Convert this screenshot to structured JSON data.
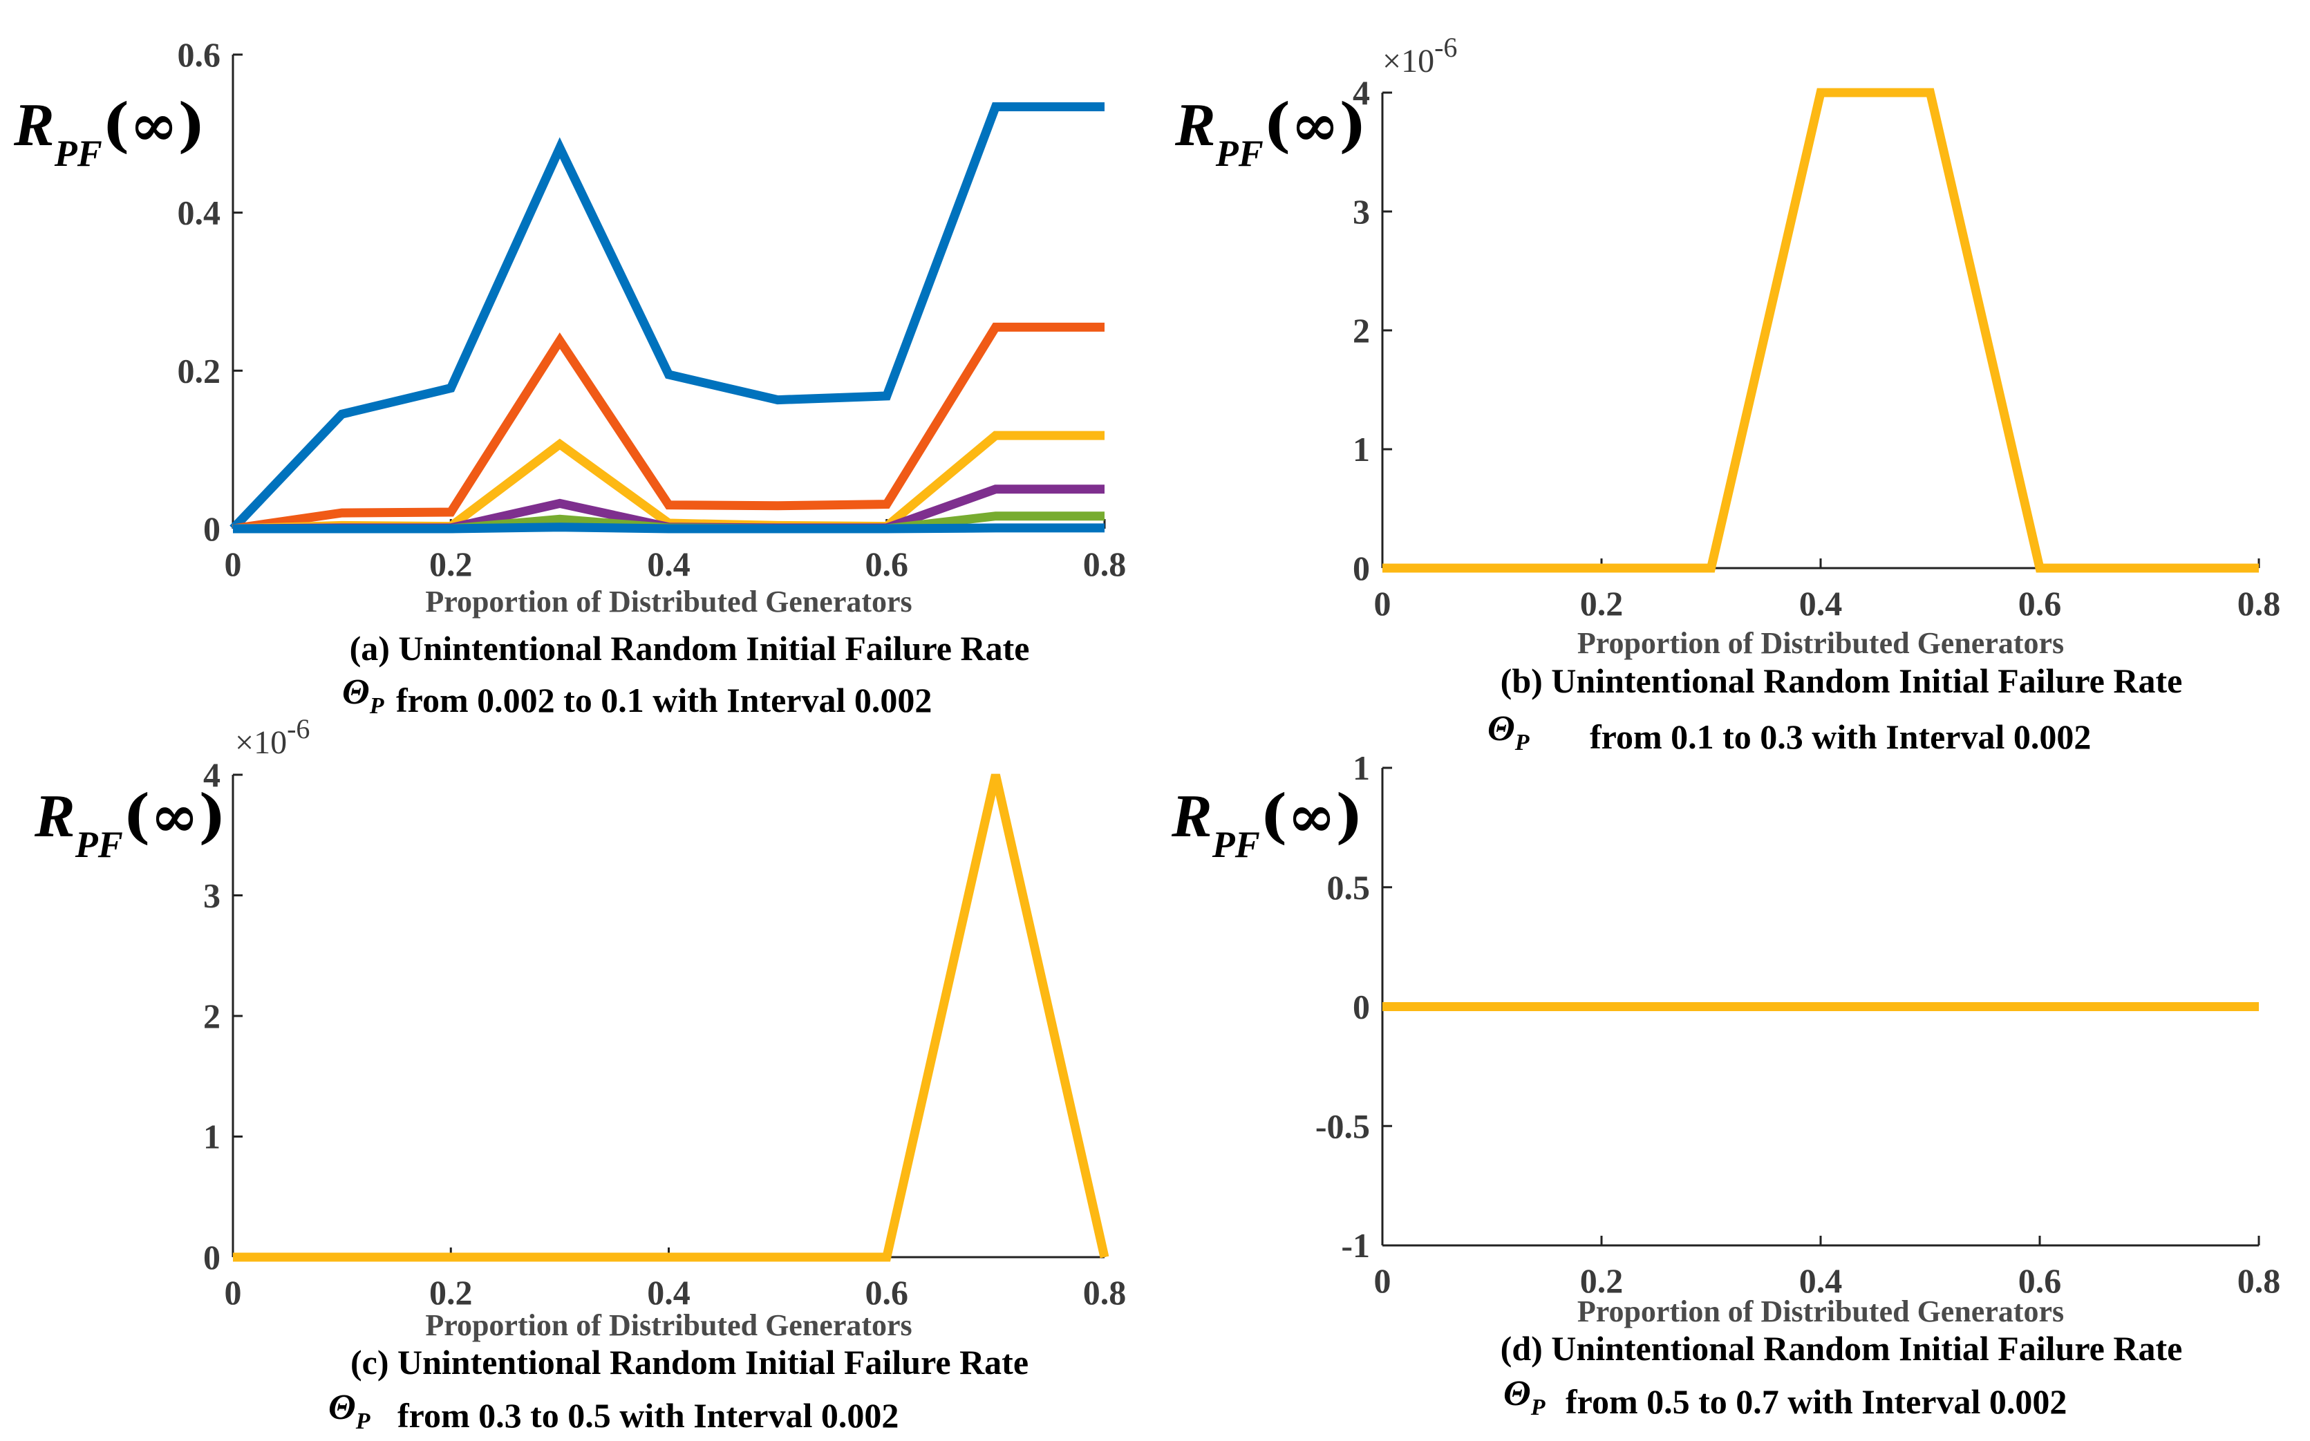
{
  "chart_data": [
    {
      "id": "a",
      "type": "line",
      "ylabel_main": "R",
      "ylabel_sub": "PF",
      "ylabel_tail": "(∞)",
      "xlabel": "Proportion of Distributed Generators",
      "caption_line1": "(a) Unintentional Random Initial Failure Rate",
      "caption_symbol": "Θ",
      "caption_symbol_sub": "P",
      "caption_line2": "from 0.002 to 0.1 with Interval 0.002",
      "exponent": "",
      "xlim": [
        0,
        0.8
      ],
      "ylim": [
        0,
        0.6
      ],
      "xticks": [
        0,
        0.2,
        0.4,
        0.6,
        0.8
      ],
      "xtick_labels": [
        "0",
        "0.2",
        "0.4",
        "0.6",
        "0.8"
      ],
      "yticks": [
        0,
        0.2,
        0.4,
        0.6
      ],
      "ytick_labels": [
        "0",
        "0.2",
        "0.4",
        "0.6"
      ],
      "x": [
        0,
        0.1,
        0.2,
        0.3,
        0.4,
        0.5,
        0.6,
        0.7,
        0.8
      ],
      "series": [
        {
          "name": "blue",
          "color": "#0072BD",
          "values": [
            0,
            0.145,
            0.178,
            0.482,
            0.195,
            0.163,
            0.168,
            0.534,
            0.534
          ]
        },
        {
          "name": "orange",
          "color": "#F05A16",
          "values": [
            0,
            0.02,
            0.021,
            0.238,
            0.03,
            0.029,
            0.031,
            0.255,
            0.255
          ]
        },
        {
          "name": "yellow",
          "color": "#FDB813",
          "values": [
            0,
            0.004,
            0.003,
            0.107,
            0.007,
            0.004,
            0.003,
            0.118,
            0.118
          ]
        },
        {
          "name": "purple",
          "color": "#7E2F8E",
          "values": [
            0,
            0.001,
            0.001,
            0.032,
            0.002,
            0.001,
            0.001,
            0.05,
            0.05
          ]
        },
        {
          "name": "green",
          "color": "#77AC30",
          "values": [
            0,
            0,
            0,
            0.012,
            0.001,
            0,
            0,
            0.016,
            0.016
          ]
        },
        {
          "name": "cyan",
          "color": "#0072BD",
          "values": [
            0,
            0,
            0,
            0.002,
            0,
            0,
            0,
            0.001,
            0.001
          ]
        }
      ]
    },
    {
      "id": "b",
      "type": "line",
      "ylabel_main": "R",
      "ylabel_sub": "PF",
      "ylabel_tail": "(∞)",
      "xlabel": "Proportion of Distributed Generators",
      "caption_line1": "(b) Unintentional Random Initial Failure Rate",
      "caption_symbol": "Θ",
      "caption_symbol_sub": "P",
      "caption_line2": "from 0.1 to 0.3 with Interval 0.002",
      "exponent": "×10",
      "exponent_power": "-6",
      "xlim": [
        0,
        0.8
      ],
      "ylim": [
        0,
        4
      ],
      "xticks": [
        0,
        0.2,
        0.4,
        0.6,
        0.8
      ],
      "xtick_labels": [
        "0",
        "0.2",
        "0.4",
        "0.6",
        "0.8"
      ],
      "yticks": [
        0,
        1,
        2,
        3,
        4
      ],
      "ytick_labels": [
        "0",
        "1",
        "2",
        "3",
        "4"
      ],
      "x": [
        0,
        0.1,
        0.2,
        0.3,
        0.4,
        0.5,
        0.6,
        0.7,
        0.8
      ],
      "series": [
        {
          "name": "yellow",
          "color": "#FDB813",
          "values": [
            0,
            0,
            0,
            0,
            4,
            4,
            0,
            0,
            0
          ]
        }
      ]
    },
    {
      "id": "c",
      "type": "line",
      "ylabel_main": "R",
      "ylabel_sub": "PF",
      "ylabel_tail": "(∞)",
      "xlabel": "Proportion of Distributed Generators",
      "caption_line1": "(c) Unintentional Random Initial Failure Rate",
      "caption_symbol": "Θ",
      "caption_symbol_sub": "P",
      "caption_line2": "from 0.3 to 0.5 with Interval 0.002",
      "exponent": "×10",
      "exponent_power": "-6",
      "xlim": [
        0,
        0.8
      ],
      "ylim": [
        0,
        4
      ],
      "xticks": [
        0,
        0.2,
        0.4,
        0.6,
        0.8
      ],
      "xtick_labels": [
        "0",
        "0.2",
        "0.4",
        "0.6",
        "0.8"
      ],
      "yticks": [
        0,
        1,
        2,
        3,
        4
      ],
      "ytick_labels": [
        "0",
        "1",
        "2",
        "3",
        "4"
      ],
      "x": [
        0,
        0.1,
        0.2,
        0.3,
        0.4,
        0.5,
        0.6,
        0.7,
        0.8
      ],
      "series": [
        {
          "name": "yellow",
          "color": "#FDB813",
          "values": [
            0,
            0,
            0,
            0,
            0,
            0,
            0,
            4,
            0
          ]
        }
      ]
    },
    {
      "id": "d",
      "type": "line",
      "ylabel_main": "R",
      "ylabel_sub": "PF",
      "ylabel_tail": "(∞)",
      "xlabel": "Proportion of Distributed Generators",
      "caption_line1": "(d) Unintentional Random Initial Failure Rate",
      "caption_symbol": "Θ",
      "caption_symbol_sub": "P",
      "caption_line2": "from 0.5 to 0.7 with Interval 0.002",
      "exponent": "",
      "xlim": [
        0,
        0.8
      ],
      "ylim": [
        -1,
        1
      ],
      "xticks": [
        0,
        0.2,
        0.4,
        0.6,
        0.8
      ],
      "xtick_labels": [
        "0",
        "0.2",
        "0.4",
        "0.6",
        "0.8"
      ],
      "yticks": [
        -1,
        -0.5,
        0,
        0.5,
        1
      ],
      "ytick_labels": [
        "-1",
        "-0.5",
        "0",
        "0.5",
        "1"
      ],
      "x": [
        0,
        0.1,
        0.2,
        0.3,
        0.4,
        0.5,
        0.6,
        0.7,
        0.8
      ],
      "series": [
        {
          "name": "yellow",
          "color": "#FDB813",
          "values": [
            0,
            0,
            0,
            0,
            0,
            0,
            0,
            0,
            0
          ]
        }
      ]
    }
  ]
}
